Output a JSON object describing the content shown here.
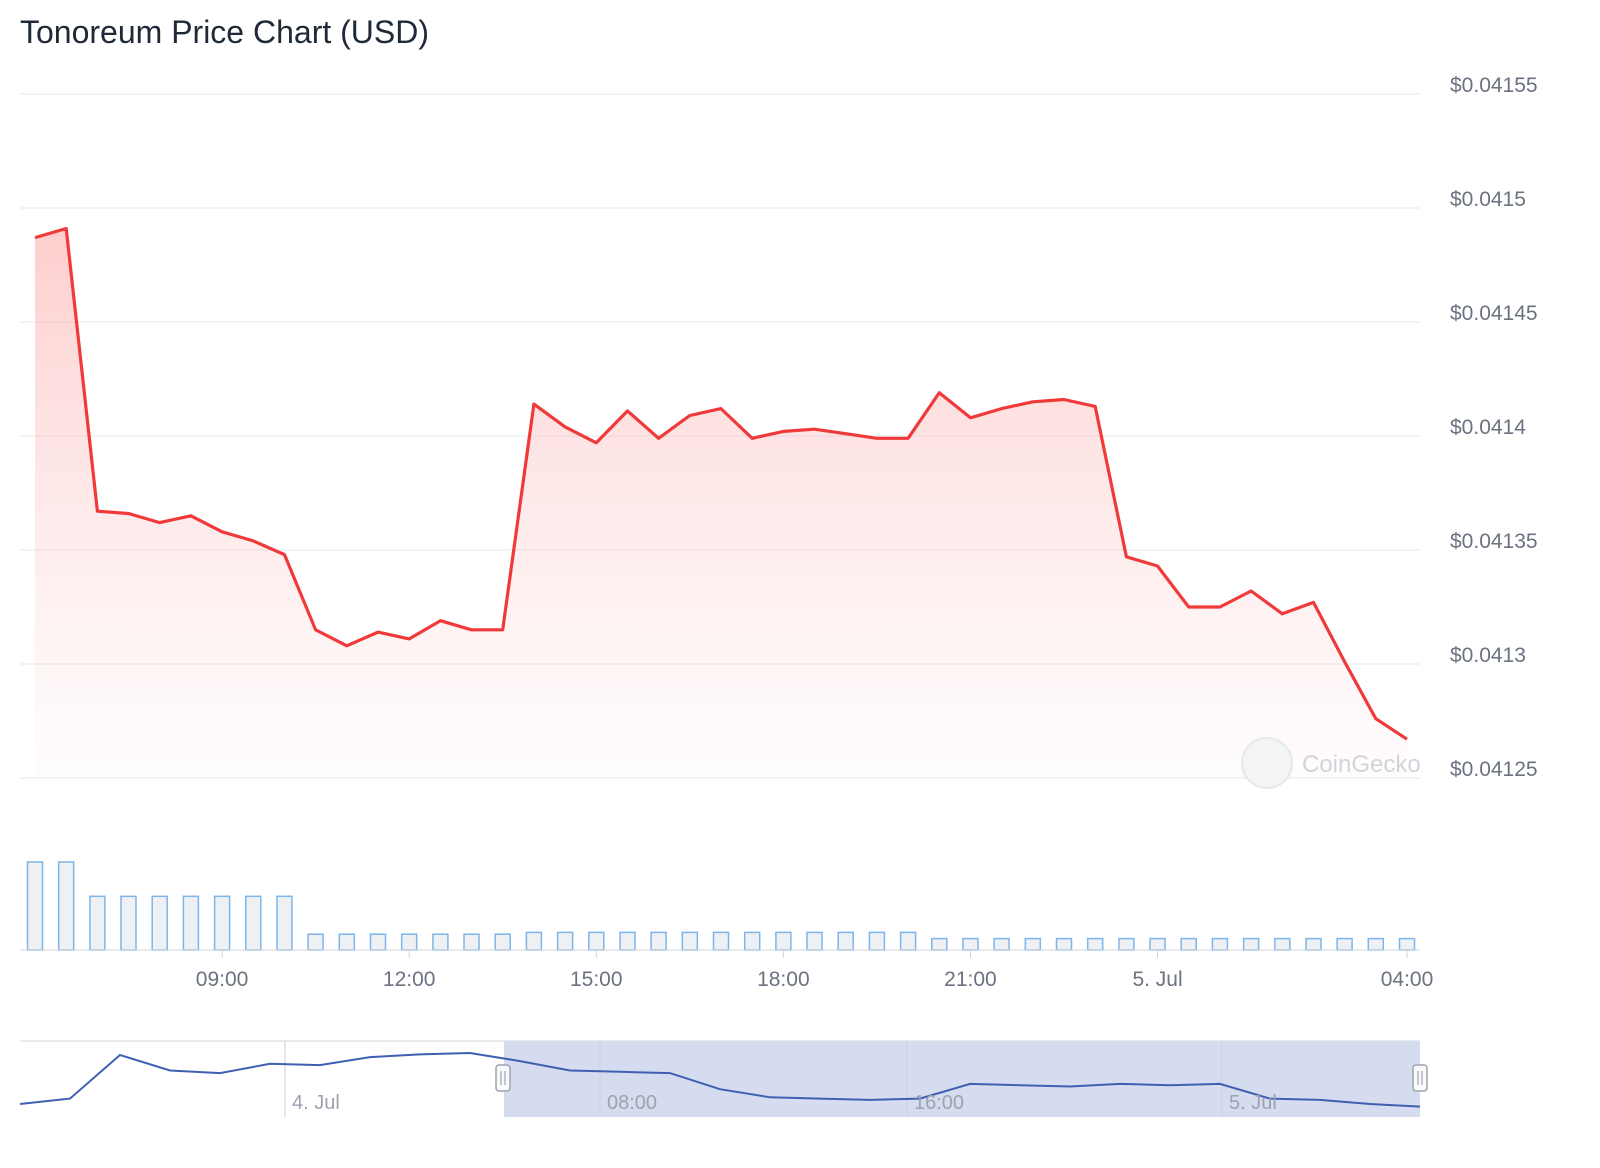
{
  "title": "Tonoreum Price Chart (USD)",
  "watermark": "CoinGecko",
  "colors": {
    "price_line": "#f03a3a",
    "price_fill": "#fecaca",
    "volume_bar_stroke": "#7cb5ec",
    "volume_bar_fill": "#eef0f3",
    "navigator_line": "#3f5fb0",
    "navigator_mask": "#d5dcf0",
    "grid": "#e5e7eb",
    "axis_text": "#6b7280"
  },
  "chart_data": {
    "type": "line",
    "title": "Tonoreum Price Chart (USD)",
    "y_axis": {
      "ylim": [
        0.04125,
        0.04155
      ],
      "tick_values": [
        0.04125,
        0.0413,
        0.04135,
        0.0414,
        0.04145,
        0.0415,
        0.04155
      ],
      "tick_labels": [
        "$0.04125",
        "$0.0413",
        "$0.04135",
        "$0.0414",
        "$0.04145",
        "$0.0415",
        "$0.04155"
      ],
      "position": "right",
      "grid": true
    },
    "x_axis": {
      "start": "4 Jul 06:00",
      "end": "5 Jul 04:30",
      "tick_hours": [
        9,
        12,
        15,
        18,
        21,
        24,
        28
      ],
      "tick_labels": [
        "09:00",
        "12:00",
        "15:00",
        "18:00",
        "21:00",
        "5. Jul",
        "04:00"
      ]
    },
    "price": {
      "name": "Price",
      "points": [
        [
          6.0,
          0.041487
        ],
        [
          6.5,
          0.041491
        ],
        [
          7.0,
          0.041367
        ],
        [
          7.5,
          0.041366
        ],
        [
          8.0,
          0.041362
        ],
        [
          8.5,
          0.041365
        ],
        [
          9.0,
          0.041358
        ],
        [
          9.5,
          0.041354
        ],
        [
          10.0,
          0.041348
        ],
        [
          10.5,
          0.041315
        ],
        [
          11.0,
          0.041308
        ],
        [
          11.5,
          0.041314
        ],
        [
          12.0,
          0.041311
        ],
        [
          12.5,
          0.041319
        ],
        [
          13.0,
          0.041315
        ],
        [
          13.5,
          0.041315
        ],
        [
          14.0,
          0.041414
        ],
        [
          14.5,
          0.041404
        ],
        [
          15.0,
          0.041397
        ],
        [
          15.5,
          0.041411
        ],
        [
          16.0,
          0.041399
        ],
        [
          16.5,
          0.041409
        ],
        [
          17.0,
          0.041412
        ],
        [
          17.5,
          0.041399
        ],
        [
          18.0,
          0.041402
        ],
        [
          18.5,
          0.041403
        ],
        [
          19.0,
          0.041401
        ],
        [
          19.5,
          0.041399
        ],
        [
          20.0,
          0.041399
        ],
        [
          20.5,
          0.041419
        ],
        [
          21.0,
          0.041408
        ],
        [
          21.5,
          0.041412
        ],
        [
          22.0,
          0.041415
        ],
        [
          22.5,
          0.041416
        ],
        [
          23.0,
          0.041413
        ],
        [
          23.5,
          0.041347
        ],
        [
          24.0,
          0.041343
        ],
        [
          24.5,
          0.041325
        ],
        [
          25.0,
          0.041325
        ],
        [
          25.5,
          0.041332
        ],
        [
          26.0,
          0.041322
        ],
        [
          26.5,
          0.041327
        ],
        [
          27.0,
          0.041301
        ],
        [
          27.5,
          0.041276
        ],
        [
          28.0,
          0.041267
        ]
      ]
    },
    "volume": {
      "name": "Volume",
      "relative_values": [
        1.0,
        1.0,
        0.61,
        0.61,
        0.61,
        0.61,
        0.61,
        0.61,
        0.61,
        0.18,
        0.18,
        0.18,
        0.18,
        0.18,
        0.18,
        0.18,
        0.2,
        0.2,
        0.2,
        0.2,
        0.2,
        0.2,
        0.2,
        0.2,
        0.2,
        0.2,
        0.2,
        0.2,
        0.2,
        0.13,
        0.13,
        0.13,
        0.13,
        0.13,
        0.13,
        0.13,
        0.13,
        0.13,
        0.13,
        0.13,
        0.13,
        0.13,
        0.13,
        0.13,
        0.13
      ]
    },
    "navigator": {
      "tick_labels": [
        "4. Jul",
        "08:00",
        "16:00",
        "5. Jul"
      ],
      "series_relative": [
        0.12,
        0.2,
        0.85,
        0.62,
        0.58,
        0.72,
        0.7,
        0.82,
        0.86,
        0.88,
        0.76,
        0.62,
        0.6,
        0.58,
        0.34,
        0.22,
        0.2,
        0.18,
        0.2,
        0.42,
        0.4,
        0.38,
        0.42,
        0.4,
        0.42,
        0.2,
        0.18,
        0.12,
        0.08
      ]
    }
  }
}
